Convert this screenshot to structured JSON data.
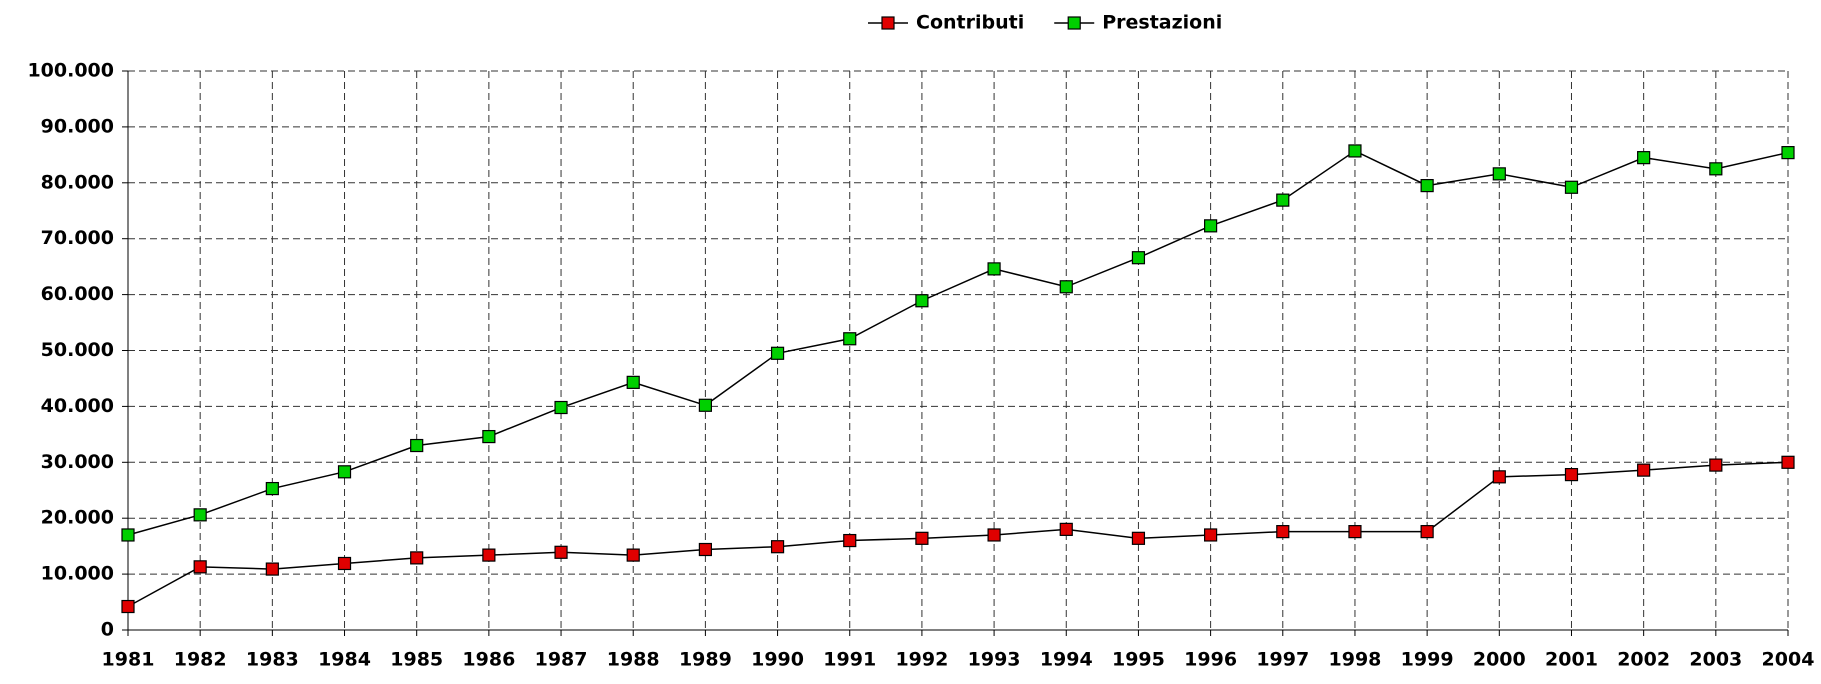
{
  "chart_data": {
    "type": "line",
    "categories": [
      "1981",
      "1982",
      "1983",
      "1984",
      "1985",
      "1986",
      "1987",
      "1988",
      "1989",
      "1990",
      "1991",
      "1992",
      "1993",
      "1994",
      "1995",
      "1996",
      "1997",
      "1998",
      "1999",
      "2000",
      "2001",
      "2002",
      "2003",
      "2004"
    ],
    "series": [
      {
        "name": "Contributi",
        "color": "#e00000",
        "values": [
          4200,
          11300,
          10900,
          11900,
          12900,
          13400,
          13900,
          13400,
          14400,
          14900,
          16000,
          16400,
          17000,
          18000,
          16400,
          17000,
          17600,
          17600,
          17600,
          27400,
          27800,
          28600,
          29500,
          30000
        ]
      },
      {
        "name": "Prestazioni",
        "color": "#00d000",
        "values": [
          17000,
          20600,
          25300,
          28300,
          33000,
          34600,
          39800,
          44300,
          40200,
          49500,
          52100,
          58900,
          64600,
          61400,
          66600,
          72300,
          76900,
          85700,
          79500,
          81600,
          79200,
          84500,
          82500,
          85400
        ]
      }
    ],
    "ylim": [
      0,
      100000
    ],
    "yticks": [
      0,
      {
        "value": 10000,
        "label": "10.000"
      },
      {
        "value": 20000,
        "label": "20.000"
      },
      {
        "value": 30000,
        "label": "30.000"
      },
      {
        "value": 40000,
        "label": "40.000"
      },
      {
        "value": 50000,
        "label": "50.000"
      },
      {
        "value": 60000,
        "label": "60.000"
      },
      {
        "value": 70000,
        "label": "70.000"
      },
      {
        "value": 80000,
        "label": "80.000"
      },
      {
        "value": 90000,
        "label": "90.000"
      },
      {
        "value": 100000,
        "label": "100.000"
      }
    ],
    "grid": true,
    "legend": "top"
  }
}
